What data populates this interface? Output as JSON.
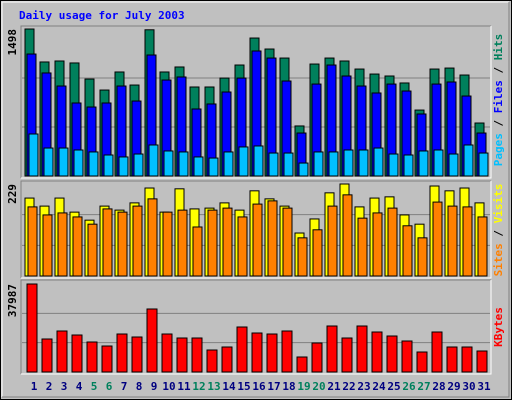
{
  "chart_data": [
    {
      "type": "bar",
      "title": "Daily usage for July 2003",
      "ylim": [
        0,
        1498
      ],
      "yticks": [
        1498
      ],
      "legend_separator": " / ",
      "series": [
        {
          "name": "Hits",
          "color": "#00805c",
          "values": [
            1498,
            1162,
            1172,
            1152,
            988,
            876,
            1060,
            927,
            1490,
            1060,
            1111,
            907,
            907,
            998,
            1131,
            1406,
            1294,
            1202,
            510,
            1141,
            1202,
            1172,
            1090,
            1039,
            1019,
            948,
            672,
            1090,
            1100,
            1029,
            540
          ]
        },
        {
          "name": "Files",
          "color": "#0000ff",
          "values": [
            1243,
            1050,
            917,
            744,
            703,
            744,
            917,
            764,
            1233,
            978,
            1009,
            683,
            734,
            856,
            998,
            1274,
            1202,
            968,
            438,
            937,
            1131,
            1019,
            917,
            846,
            937,
            866,
            632,
            937,
            958,
            815,
            438
          ]
        },
        {
          "name": "Pages",
          "color": "#00c0ff",
          "values": [
            428,
            285,
            285,
            265,
            245,
            214,
            194,
            224,
            316,
            255,
            245,
            194,
            183,
            245,
            296,
            306,
            234,
            234,
            132,
            245,
            245,
            265,
            265,
            285,
            224,
            214,
            255,
            265,
            224,
            316,
            234
          ]
        }
      ]
    },
    {
      "type": "bar",
      "ylim": [
        0,
        229
      ],
      "yticks": [
        229
      ],
      "legend_separator": " / ",
      "series": [
        {
          "name": "Visits",
          "color": "#ffff00",
          "values": [
            194,
            174,
            194,
            159,
            139,
            174,
            164,
            182,
            219,
            159,
            217,
            167,
            169,
            182,
            164,
            212,
            192,
            174,
            107,
            142,
            207,
            229,
            172,
            194,
            197,
            152,
            129,
            224,
            212,
            219,
            182
          ]
        },
        {
          "name": "Sites",
          "color": "#ff8000",
          "values": [
            172,
            152,
            157,
            147,
            129,
            167,
            159,
            174,
            192,
            159,
            164,
            122,
            164,
            169,
            147,
            179,
            187,
            169,
            95,
            115,
            174,
            202,
            144,
            157,
            169,
            125,
            95,
            184,
            174,
            172,
            147
          ]
        }
      ]
    },
    {
      "type": "bar",
      "ylim": [
        0,
        37987
      ],
      "yticks": [
        37987
      ],
      "categories": [
        "1",
        "2",
        "3",
        "4",
        "5",
        "6",
        "7",
        "8",
        "9",
        "10",
        "11",
        "12",
        "13",
        "14",
        "15",
        "16",
        "17",
        "18",
        "19",
        "20",
        "21",
        "22",
        "23",
        "24",
        "25",
        "26",
        "27",
        "28",
        "29",
        "30",
        "31"
      ],
      "category_colors": [
        "#000080",
        "#000080",
        "#000080",
        "#000080",
        "#00805c",
        "#00805c",
        "#000080",
        "#000080",
        "#000080",
        "#000080",
        "#000080",
        "#00805c",
        "#00805c",
        "#000080",
        "#000080",
        "#000080",
        "#000080",
        "#000080",
        "#00805c",
        "#00805c",
        "#000080",
        "#000080",
        "#000080",
        "#000080",
        "#000080",
        "#00805c",
        "#00805c",
        "#000080",
        "#000080",
        "#000080",
        "#000080"
      ],
      "series": [
        {
          "name": "KBytes",
          "color": "#ff0000",
          "values": [
            37987,
            14246,
            17700,
            15973,
            12951,
            11224,
            16404,
            15110,
            27197,
            16404,
            14678,
            14678,
            9497,
            10793,
            19426,
            16836,
            16404,
            17700,
            6476,
            12519,
            19858,
            14678,
            19858,
            17268,
            15541,
            13383,
            8634,
            17268,
            10793,
            10793,
            9066
          ]
        }
      ]
    }
  ]
}
